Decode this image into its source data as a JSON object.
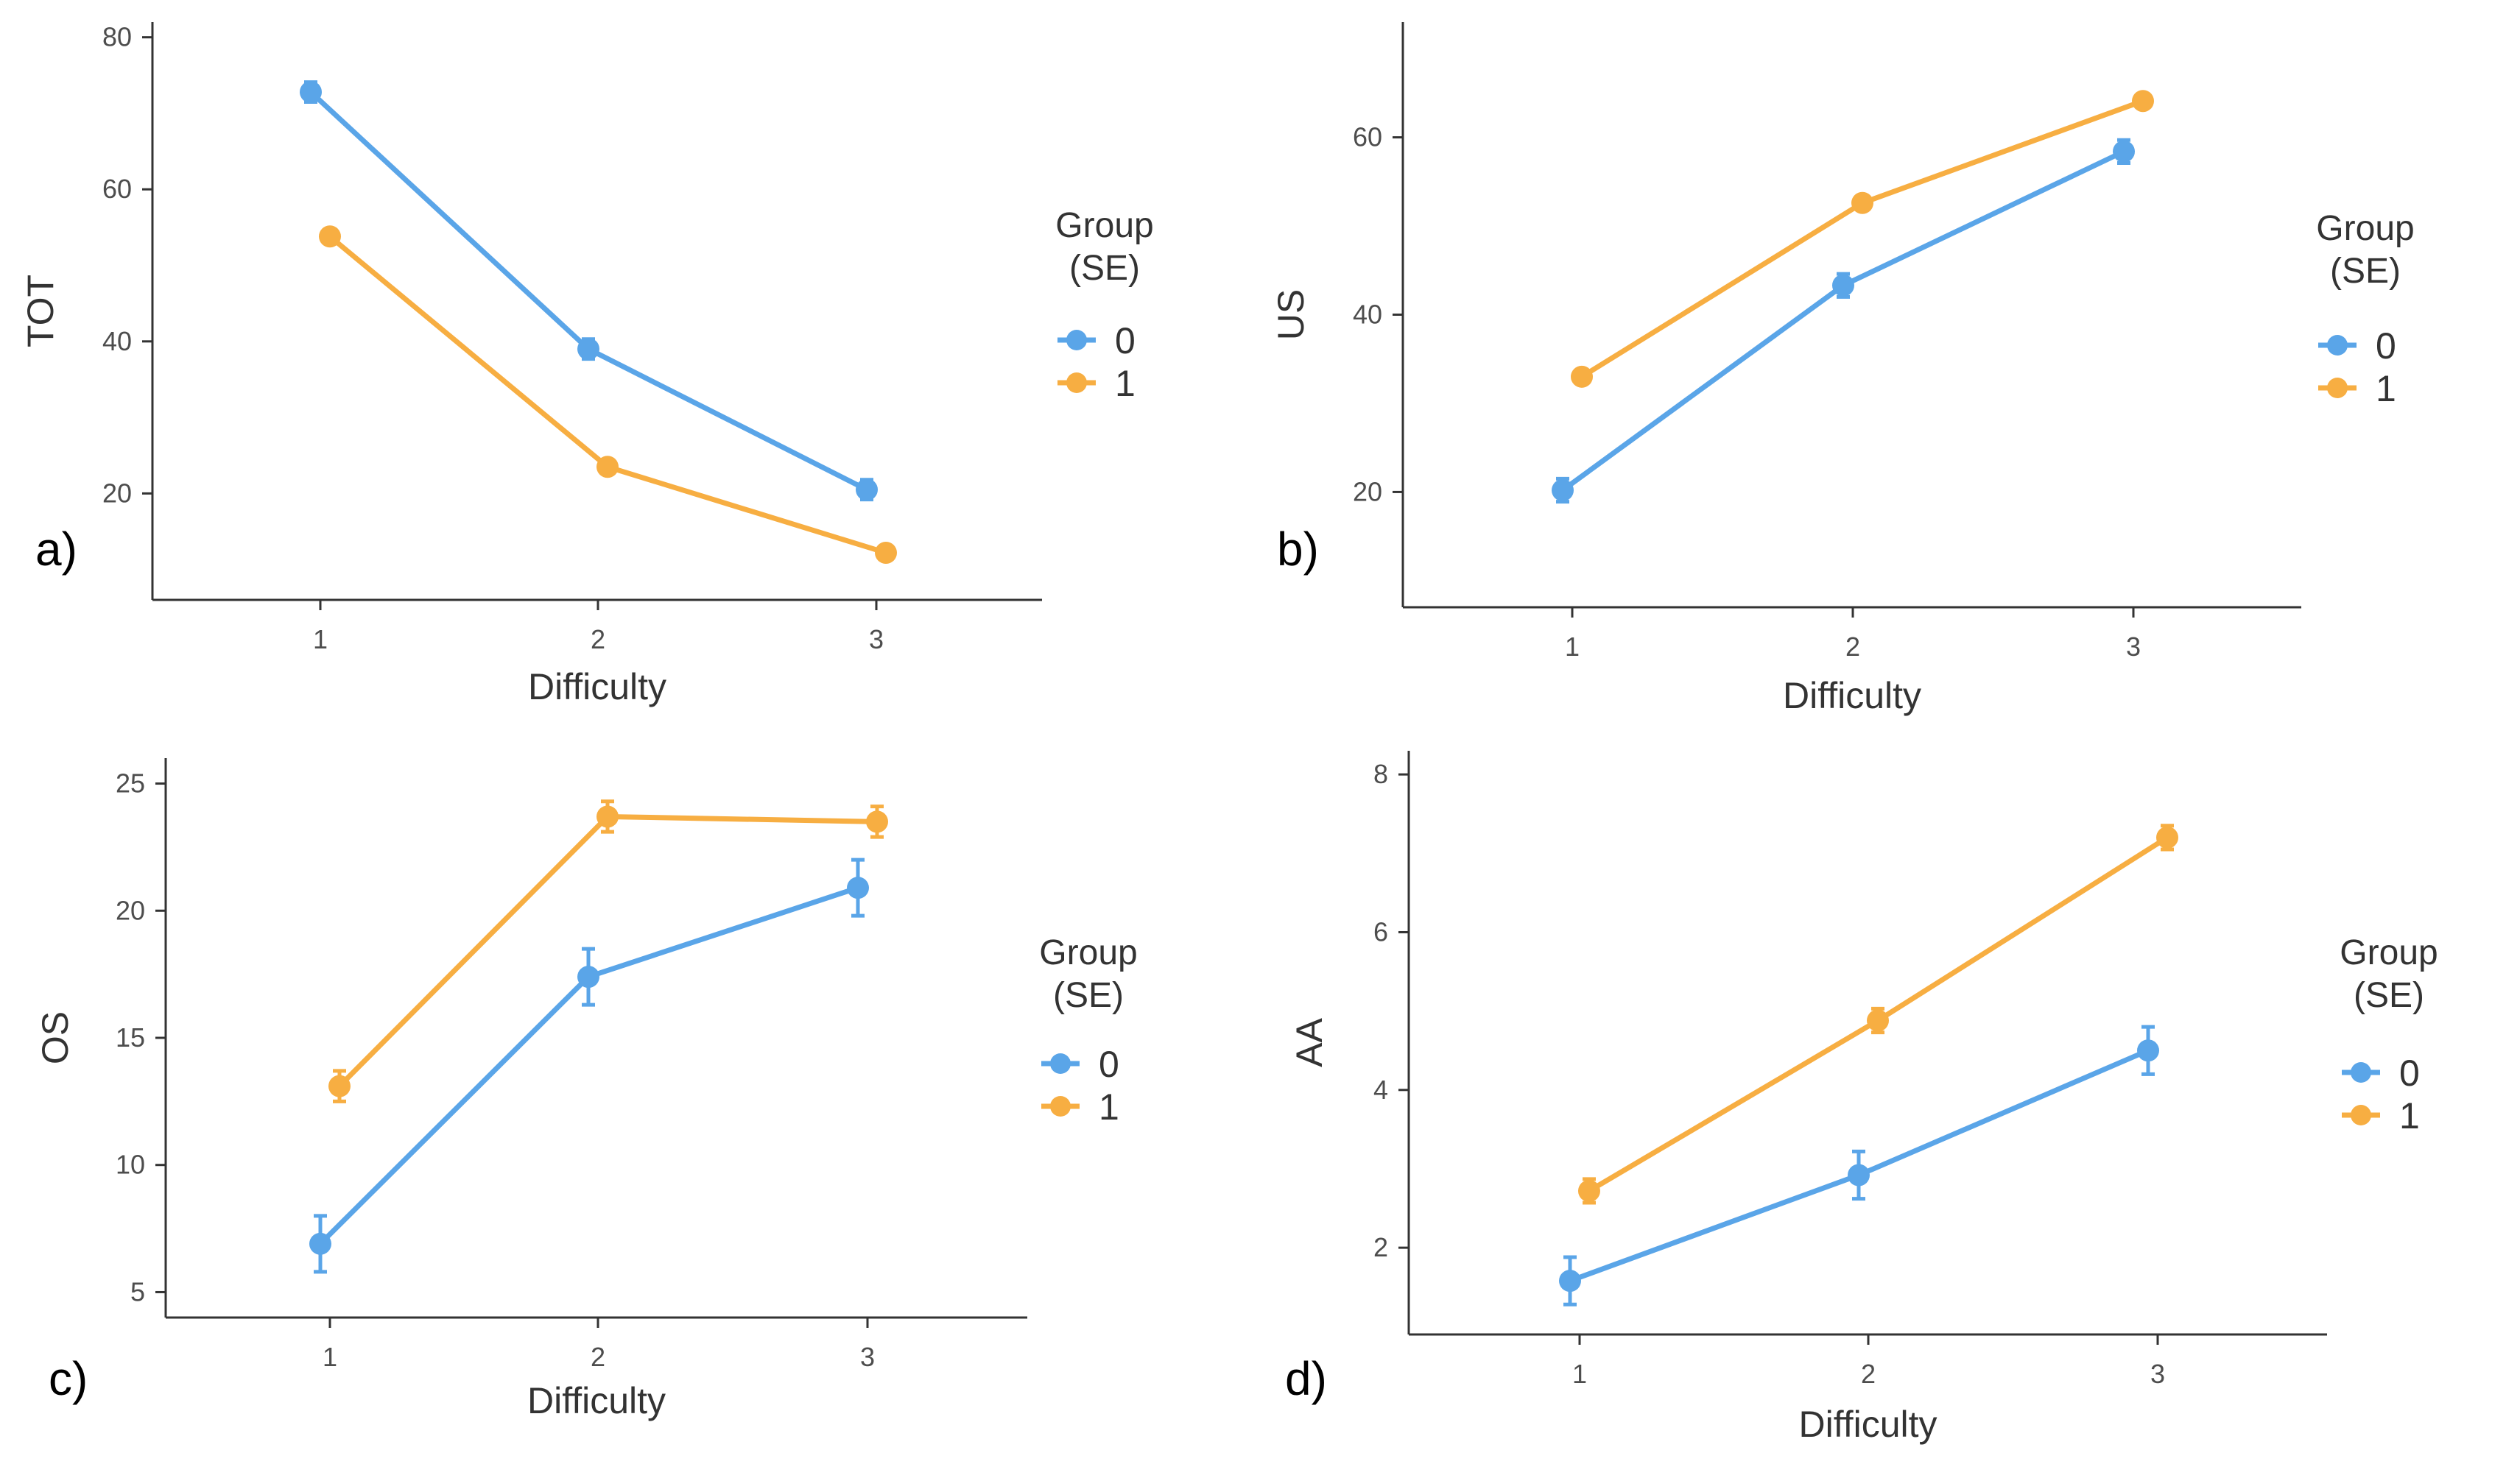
{
  "colors": {
    "group0": "#5aa5e8",
    "group1": "#f7ae42",
    "axis": "#333333",
    "tick_text": "#4d4d4d"
  },
  "chart_data": [
    {
      "panel": "a)",
      "type": "line",
      "xlabel": "Difficulty",
      "ylabel": "TOT",
      "categories": [
        "1",
        "2",
        "3"
      ],
      "ylim": [
        6,
        82
      ],
      "yticks": [
        20,
        40,
        60,
        80
      ],
      "legend_title": "Group\n(SE)",
      "series": [
        {
          "name": "0",
          "values": [
            72.8,
            39.0,
            20.5
          ],
          "se": [
            1.3,
            1.3,
            1.3
          ]
        },
        {
          "name": "1",
          "values": [
            53.8,
            23.5,
            12.2
          ],
          "se": [
            0.5,
            0.5,
            0.5
          ]
        }
      ]
    },
    {
      "panel": "b)",
      "type": "line",
      "xlabel": "Difficulty",
      "ylabel": "US",
      "categories": [
        "1",
        "2",
        "3"
      ],
      "ylim": [
        7,
        73
      ],
      "yticks": [
        20,
        40,
        60
      ],
      "legend_title": "Group\n(SE)",
      "series": [
        {
          "name": "0",
          "values": [
            20.2,
            43.3,
            58.4
          ],
          "se": [
            1.3,
            1.3,
            1.3
          ]
        },
        {
          "name": "1",
          "values": [
            33.0,
            52.6,
            64.1
          ],
          "se": [
            0.5,
            0.5,
            0.5
          ]
        }
      ]
    },
    {
      "panel": "c)",
      "type": "line",
      "xlabel": "Difficulty",
      "ylabel": "OS",
      "categories": [
        "1",
        "2",
        "3"
      ],
      "ylim": [
        4,
        26
      ],
      "yticks": [
        5,
        10,
        15,
        20,
        25
      ],
      "legend_title": "Group\n(SE)",
      "series": [
        {
          "name": "0",
          "values": [
            6.9,
            17.4,
            20.9
          ],
          "se": [
            1.1,
            1.1,
            1.1
          ]
        },
        {
          "name": "1",
          "values": [
            13.1,
            23.7,
            23.5
          ],
          "se": [
            0.6,
            0.6,
            0.6
          ]
        }
      ]
    },
    {
      "panel": "d)",
      "type": "line",
      "xlabel": "Difficulty",
      "ylabel": "AA",
      "categories": [
        "1",
        "2",
        "3"
      ],
      "ylim": [
        0.9,
        8.3
      ],
      "yticks": [
        2,
        4,
        6,
        8
      ],
      "legend_title": "Group\n(SE)",
      "series": [
        {
          "name": "0",
          "values": [
            1.58,
            2.92,
            4.5
          ],
          "se": [
            0.3,
            0.3,
            0.3
          ]
        },
        {
          "name": "1",
          "values": [
            2.72,
            4.88,
            7.2
          ],
          "se": [
            0.15,
            0.15,
            0.15
          ]
        }
      ]
    }
  ]
}
